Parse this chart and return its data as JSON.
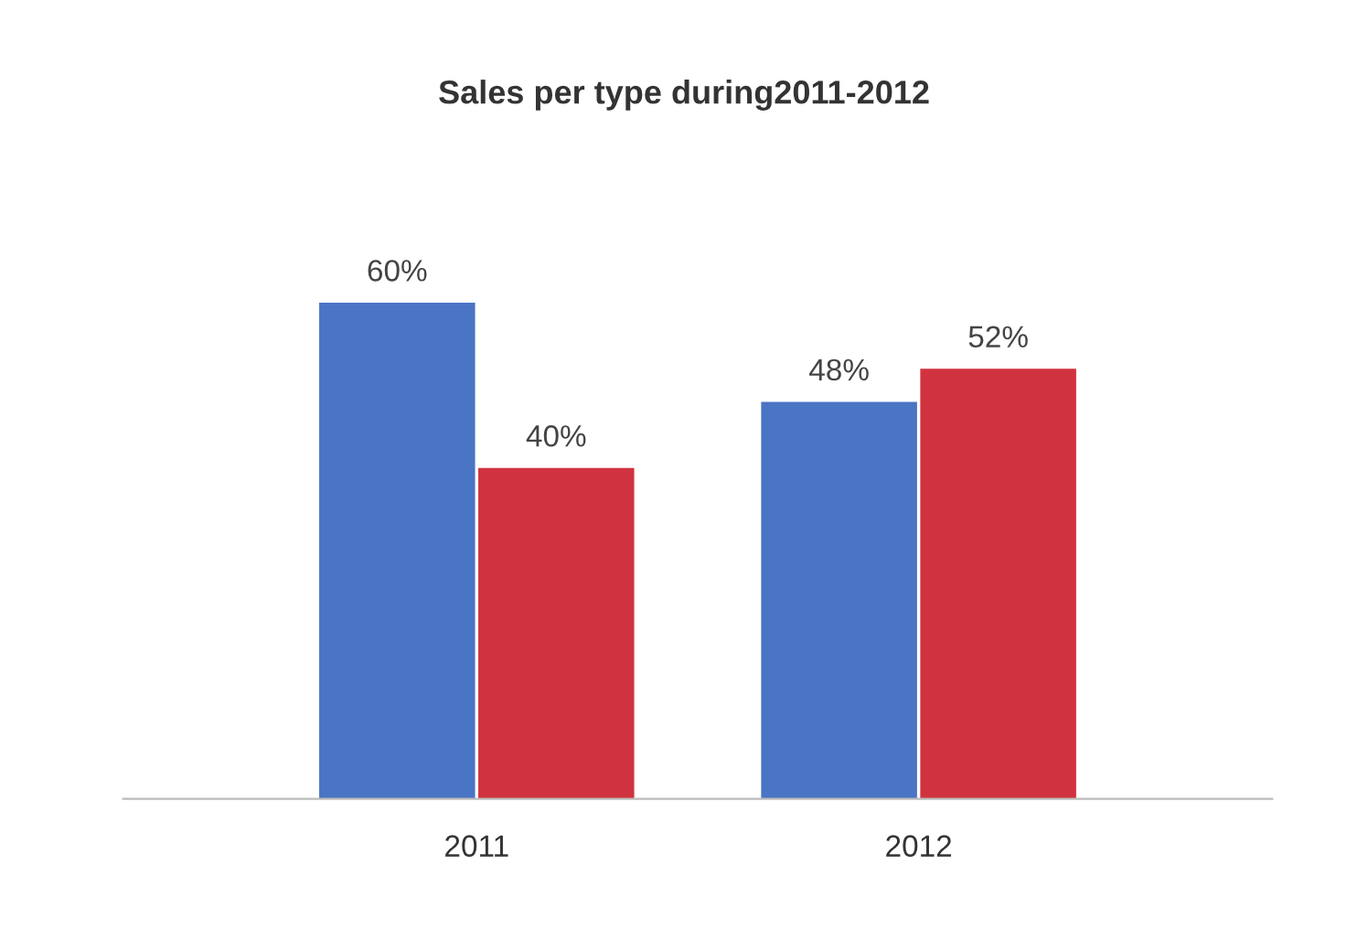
{
  "chart_data": {
    "type": "bar",
    "title": "Sales per type during2011-2012",
    "categories": [
      "2011",
      "2012"
    ],
    "series": [
      {
        "color": "#4a74c4",
        "values": [
          60,
          48
        ],
        "value_labels": [
          "60%",
          "48%"
        ]
      },
      {
        "color": "#d0333f",
        "values": [
          40,
          52
        ],
        "value_labels": [
          "40%",
          "52%"
        ]
      }
    ],
    "grid": false
  }
}
